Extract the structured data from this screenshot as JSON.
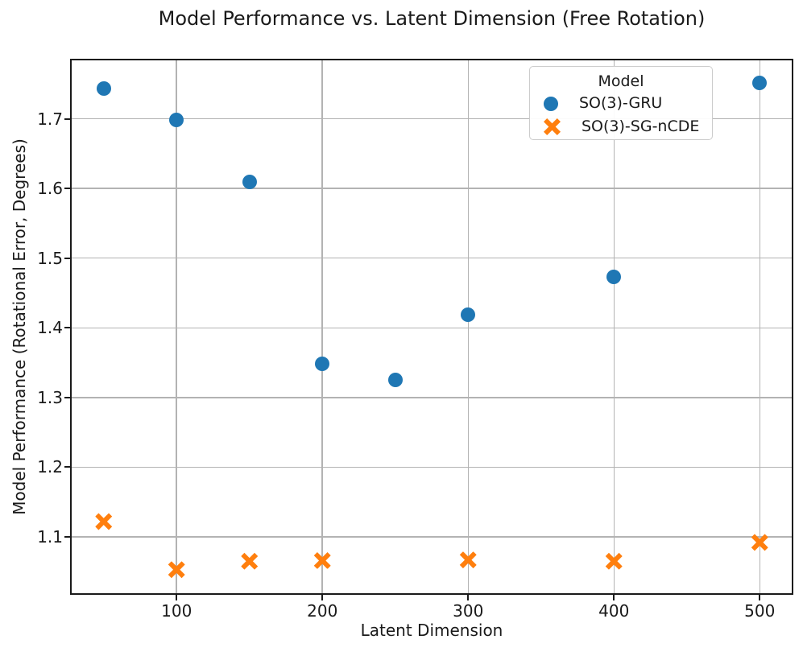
{
  "chart_data": {
    "type": "scatter",
    "title": "Model Performance vs. Latent Dimension (Free Rotation)",
    "xlabel": "Latent Dimension",
    "ylabel": "Model Performance (Rotational Error, Degrees)",
    "xlim": [
      27.5,
      522.5
    ],
    "ylim": [
      1.018,
      1.785
    ],
    "grid": true,
    "xticks": {
      "values": [
        100,
        200,
        300,
        400,
        500
      ],
      "labels": [
        "100",
        "200",
        "300",
        "400",
        "500"
      ]
    },
    "yticks": {
      "values": [
        1.1,
        1.2,
        1.3,
        1.4,
        1.5,
        1.6,
        1.7
      ],
      "labels": [
        "1.1",
        "1.2",
        "1.3",
        "1.4",
        "1.5",
        "1.6",
        "1.7"
      ]
    },
    "legend": {
      "title": "Model",
      "position": "upper right"
    },
    "colors": {
      "blue": "#1f77b4",
      "orange": "#ff7f0e",
      "grid": "#b3b3b3",
      "spine": "#1a1a1a"
    },
    "series": [
      {
        "name": "SO(3)-GRU",
        "marker": "circle",
        "color": "#1f77b4",
        "x": [
          50,
          100,
          150,
          200,
          250,
          300,
          400,
          500
        ],
        "y": [
          1.743,
          1.698,
          1.609,
          1.348,
          1.325,
          1.419,
          1.473,
          1.751
        ]
      },
      {
        "name": "SO(3)-SG-nCDE",
        "marker": "X",
        "color": "#ff7f0e",
        "x": [
          50,
          100,
          150,
          200,
          300,
          400,
          500
        ],
        "y": [
          1.122,
          1.053,
          1.065,
          1.066,
          1.067,
          1.065,
          1.092
        ]
      }
    ]
  }
}
